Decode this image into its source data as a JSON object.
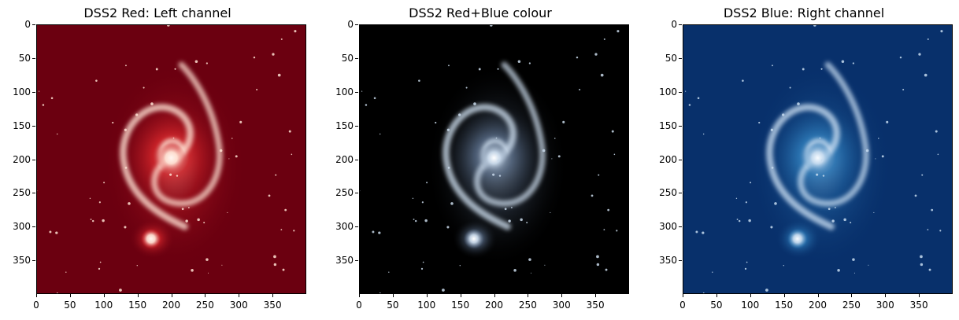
{
  "panels": [
    {
      "title": "DSS2 Red: Left channel",
      "colormap": "reds",
      "colors": {
        "background": "#6b0010",
        "mid": "#d7262b",
        "high": "#fee0d2",
        "core": "#fff5f0"
      }
    },
    {
      "title": "DSS2 Red+Blue colour",
      "colormap": "rgb",
      "colors": {
        "background": "#000000",
        "mid": "#5a6e8a",
        "high": "#c9d9ea",
        "core": "#ffffff"
      }
    },
    {
      "title": "DSS2 Blue: Right channel",
      "colormap": "blues",
      "colors": {
        "background": "#08306b",
        "mid": "#2f7ebc",
        "high": "#c6dbef",
        "core": "#f7fbff"
      }
    }
  ],
  "axes": {
    "x_ticks": [
      "0",
      "50",
      "100",
      "150",
      "200",
      "250",
      "300",
      "350"
    ],
    "y_ticks": [
      "0",
      "50",
      "100",
      "150",
      "200",
      "250",
      "300",
      "350"
    ],
    "pixel_range": [
      0,
      400
    ]
  }
}
